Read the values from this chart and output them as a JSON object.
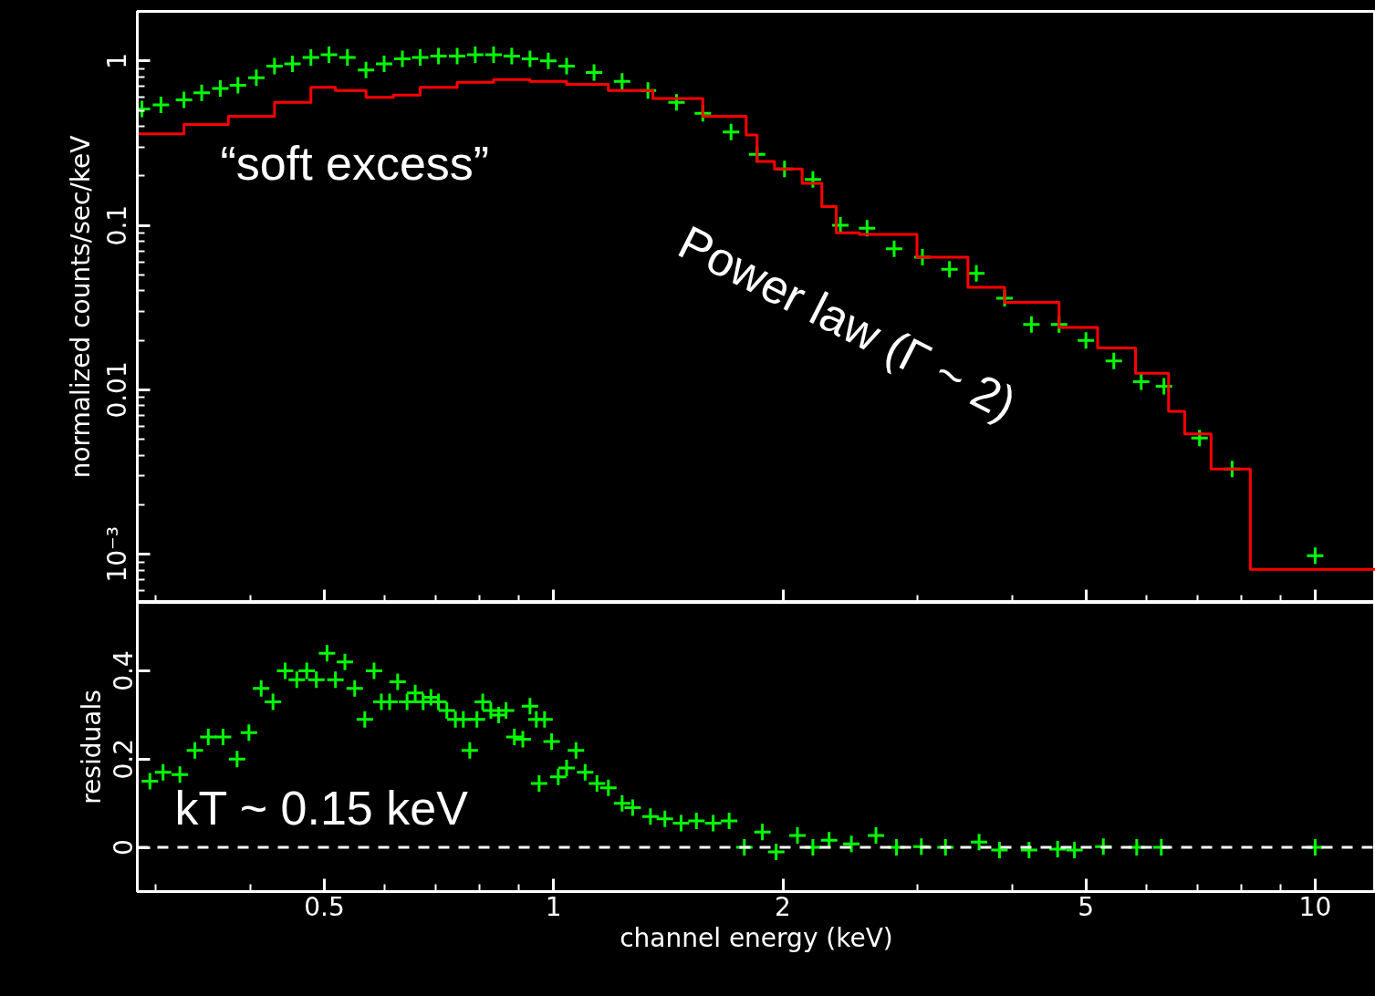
{
  "chart_data": [
    {
      "type": "line",
      "ylabel": "normalized counts/sec/keV",
      "log": "xy",
      "tick_labels": "y",
      "xlim": [
        0.284,
        12.0
      ],
      "ylim": [
        0.00051,
        2.0
      ],
      "xticks": [
        {
          "value": 0.5,
          "label": null
        },
        {
          "value": 1,
          "label": null
        },
        {
          "value": 2,
          "label": null
        },
        {
          "value": 5,
          "label": null
        },
        {
          "value": 10,
          "label": null
        }
      ],
      "yticks": [
        1,
        0.1,
        0.01,
        {
          "value": 0.001,
          "label": "10⁻³"
        }
      ],
      "series": [
        {
          "type": "scatter",
          "color": "#00ff00",
          "marker": "cross",
          "x": [
            0.288,
            0.305,
            0.327,
            0.345,
            0.365,
            0.385,
            0.407,
            0.43,
            0.454,
            0.48,
            0.507,
            0.536,
            0.567,
            0.599,
            0.633,
            0.668,
            0.706,
            0.747,
            0.789,
            0.834,
            0.881,
            0.931,
            0.984,
            1.04,
            1.13,
            1.23,
            1.33,
            1.45,
            1.57,
            1.71,
            1.85,
            2.01,
            2.19,
            2.38,
            2.58,
            2.8,
            3.05,
            3.31,
            3.59,
            3.91,
            4.24,
            4.61,
            5.0,
            5.44,
            5.91,
            6.33,
            7.05,
            7.78,
            10
          ],
          "values": [
            0.51,
            0.54,
            0.58,
            0.64,
            0.68,
            0.71,
            0.79,
            0.93,
            0.96,
            1.05,
            1.09,
            1.05,
            0.88,
            0.96,
            1.03,
            1.05,
            1.07,
            1.07,
            1.09,
            1.09,
            1.07,
            1.03,
            1.0,
            0.93,
            0.85,
            0.75,
            0.66,
            0.56,
            0.48,
            0.37,
            0.27,
            0.22,
            0.19,
            0.1,
            0.096,
            0.072,
            0.064,
            0.054,
            0.051,
            0.036,
            0.025,
            0.025,
            0.02,
            0.015,
            0.0112,
            0.0105,
            0.0051,
            0.0033,
            0.00098
          ]
        },
        {
          "type": "step",
          "color": "#ff0000",
          "x": [
            0.284,
            0.327,
            0.374,
            0.43,
            0.48,
            0.517,
            0.567,
            0.616,
            0.668,
            0.747,
            0.834,
            0.931,
            1.04,
            1.18,
            1.35,
            1.57,
            1.79,
            1.85,
            1.95,
            2.12,
            2.25,
            2.35,
            2.52,
            3.0,
            3.5,
            3.91,
            4.61,
            5.18,
            5.81,
            6.0,
            6.42,
            6.74,
            7.3,
            8.22,
            12.0
          ],
          "values": [
            0.36,
            0.41,
            0.46,
            0.56,
            0.69,
            0.66,
            0.6,
            0.62,
            0.69,
            0.74,
            0.77,
            0.75,
            0.72,
            0.66,
            0.59,
            0.46,
            0.355,
            0.245,
            0.22,
            0.18,
            0.13,
            0.09,
            0.088,
            0.064,
            0.042,
            0.034,
            0.024,
            0.018,
            0.0126,
            0.0126,
            0.0074,
            0.0054,
            0.0033,
            0.00081,
            0.00081
          ]
        }
      ],
      "annotations": [
        "“soft excess”",
        "Power law (Γ ~ 2)"
      ]
    },
    {
      "type": "scatter",
      "xlabel": "channel energy (keV)",
      "ylabel": "residuals",
      "log": "x",
      "color": "#00ff00",
      "marker": "cross",
      "xlim": [
        0.284,
        12.0
      ],
      "ylim": [
        -0.1,
        0.555
      ],
      "xticks": [
        0.5,
        1,
        2,
        5,
        10
      ],
      "yticks": [
        0,
        0.2,
        0.4
      ],
      "x": [
        0.295,
        0.307,
        0.323,
        0.338,
        0.352,
        0.368,
        0.384,
        0.398,
        0.413,
        0.428,
        0.444,
        0.46,
        0.474,
        0.488,
        0.504,
        0.517,
        0.532,
        0.548,
        0.565,
        0.581,
        0.594,
        0.609,
        0.624,
        0.642,
        0.658,
        0.674,
        0.69,
        0.706,
        0.724,
        0.743,
        0.761,
        0.776,
        0.793,
        0.807,
        0.827,
        0.847,
        0.866,
        0.888,
        0.911,
        0.931,
        0.949,
        0.957,
        0.973,
        0.994,
        1.014,
        1.04,
        1.07,
        1.1,
        1.14,
        1.18,
        1.23,
        1.27,
        1.34,
        1.4,
        1.47,
        1.54,
        1.62,
        1.7,
        1.78,
        1.88,
        1.96,
        2.09,
        2.19,
        2.3,
        2.46,
        2.65,
        2.82,
        3.04,
        3.27,
        3.62,
        3.85,
        4.21,
        4.59,
        4.83,
        5.27,
        5.83,
        6.28,
        10
      ],
      "values": [
        0.15,
        0.17,
        0.165,
        0.22,
        0.25,
        0.25,
        0.2,
        0.26,
        0.36,
        0.33,
        0.4,
        0.38,
        0.4,
        0.38,
        0.44,
        0.38,
        0.42,
        0.36,
        0.29,
        0.4,
        0.33,
        0.33,
        0.375,
        0.33,
        0.35,
        0.33,
        0.34,
        0.33,
        0.31,
        0.29,
        0.29,
        0.22,
        0.29,
        0.33,
        0.31,
        0.3,
        0.31,
        0.25,
        0.245,
        0.32,
        0.29,
        0.145,
        0.29,
        0.24,
        0.16,
        0.18,
        0.22,
        0.17,
        0.145,
        0.135,
        0.1,
        0.09,
        0.07,
        0.065,
        0.055,
        0.06,
        0.055,
        0.06,
        0.0,
        0.035,
        -0.01,
        0.027,
        0.0,
        0.016,
        0.008,
        0.027,
        0.0,
        0.002,
        0.0,
        0.012,
        -0.006,
        -0.006,
        -0.004,
        -0.006,
        0.002,
        0.0,
        0.0,
        0.0
      ],
      "ref_lines": [
        {
          "axis": "y",
          "value": 0,
          "color": "#ffffff",
          "line_style": "dashed"
        }
      ],
      "annotations": [
        "kT ~ 0.15 keV"
      ]
    }
  ]
}
